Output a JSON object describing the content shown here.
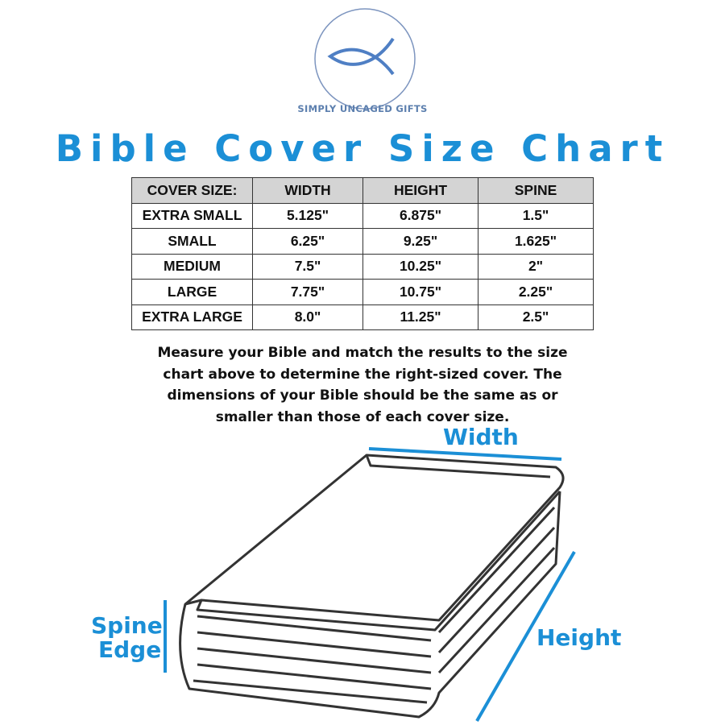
{
  "brand": {
    "name": "SIMPLY UNCAGED GIFTS",
    "logo_icon": "ichthys-fish-icon"
  },
  "title": "Bible Cover Size Chart",
  "table": {
    "headers": [
      "COVER SIZE:",
      "WIDTH",
      "HEIGHT",
      "SPINE"
    ],
    "rows": [
      [
        "EXTRA SMALL",
        "5.125\"",
        "6.875\"",
        "1.5\""
      ],
      [
        "SMALL",
        "6.25\"",
        "9.25\"",
        "1.625\""
      ],
      [
        "MEDIUM",
        "7.5\"",
        "10.25\"",
        "2\""
      ],
      [
        "LARGE",
        "7.75\"",
        "10.75\"",
        "2.25\""
      ],
      [
        "EXTRA LARGE",
        "8.0\"",
        "11.25\"",
        "2.5\""
      ]
    ]
  },
  "note": "Measure your Bible and match the results to the size chart above to determine the right-sized cover. The dimensions of your Bible should be the same as or smaller than those of each cover size.",
  "diagram": {
    "width_label": "Width",
    "height_label": "Height",
    "spine_label_1": "Spine",
    "spine_label_2": "Edge",
    "accent_color": "#1b8fd6"
  }
}
